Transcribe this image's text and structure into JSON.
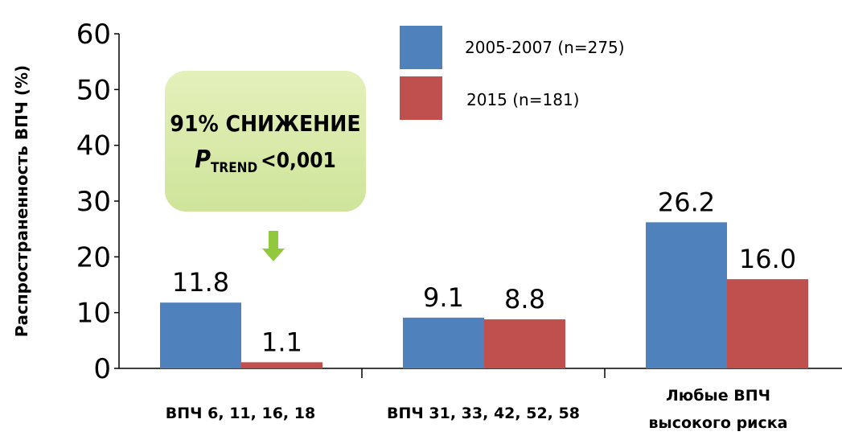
{
  "chart_data": {
    "type": "bar",
    "y_label": "Распространенность ВПЧ (%)",
    "categories": [
      "ВПЧ 6, 11, 16, 18",
      "ВПЧ 31, 33, 42, 52, 58",
      "Любые ВПЧ высокого риска"
    ],
    "series": [
      {
        "name": "2005-2007 (n=275)",
        "color": "#4f81bd",
        "values": [
          11.8,
          9.1,
          26.2
        ],
        "value_labels": [
          "11.8",
          "9.1",
          "26.2"
        ]
      },
      {
        "name": "2015 (n=181)",
        "color": "#c0504d",
        "values": [
          1.1,
          8.8,
          16.0
        ],
        "value_labels": [
          "1.1",
          "8.8",
          "16.0"
        ]
      }
    ],
    "ylim": [
      0,
      60
    ],
    "yticks": [
      0,
      10,
      20,
      30,
      40,
      50,
      60
    ],
    "annotation": {
      "line1": "91% СНИЖЕНИЕ",
      "p": "P",
      "sub": "TREND",
      "rest": "<0,001"
    }
  }
}
